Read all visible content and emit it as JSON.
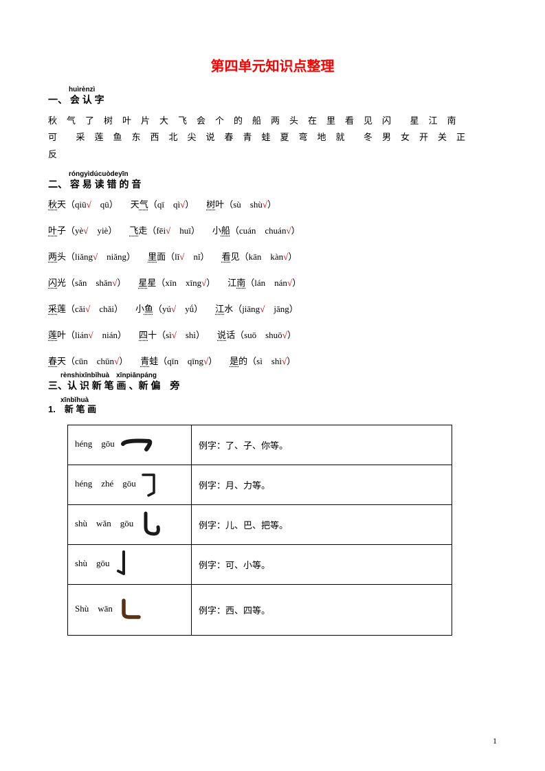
{
  "title_color": "#ff0000",
  "check_color": "#c00000",
  "title": "第四单元知识点整理",
  "section1": {
    "pinyin": "huìrènzì",
    "label": "一、 会 认 字",
    "chars_line1": "秋　气　了　树　叶　片　大　飞　会　个　的　船　两　头　在　里　看　见　闪　　星　江　南",
    "chars_line2": "可　　采　莲　鱼　东　西　北　尖　说　春　青　蛙　夏　弯　地　就　　冬　男　女　开　关　正",
    "chars_line3": "反"
  },
  "section2": {
    "pinyin": "róngyìdúcuòdeyīn",
    "label": "二、 容 易 读 错 的 音",
    "rows": [
      [
        {
          "word": "秋天",
          "dot": 0,
          "a": "qiū",
          "b": "qū",
          "correct": "a"
        },
        {
          "word": "天气",
          "dot": 1,
          "a": "qī",
          "b": "qì",
          "correct": "b"
        },
        {
          "word": "树叶",
          "dot": 0,
          "a": "sù",
          "b": "shù",
          "correct": "b"
        }
      ],
      [
        {
          "word": "叶子",
          "dot": 0,
          "a": "yè",
          "b": "yiè",
          "correct": "a"
        },
        {
          "word": "飞走",
          "dot": 0,
          "a": "fēi",
          "b": "huī",
          "correct": "a"
        },
        {
          "word": "小船",
          "dot": 1,
          "a": "cuán",
          "b": "chuán",
          "correct": "b"
        }
      ],
      [
        {
          "word": "两头",
          "dot": 0,
          "a": "liǎng",
          "b": "niǎng",
          "correct": "a"
        },
        {
          "word": "里面",
          "dot": 0,
          "a": "lǐ",
          "b": "nǐ",
          "correct": "a"
        },
        {
          "word": "看见",
          "dot": 0,
          "a": "kān",
          "b": "kàn",
          "correct": "b"
        }
      ],
      [
        {
          "word": "闪光",
          "dot": 0,
          "a": "sǎn",
          "b": "shǎn",
          "correct": "b"
        },
        {
          "word": "星星",
          "dot": 0,
          "a": "xīn",
          "b": "xīng",
          "correct": "b"
        },
        {
          "word": "江南",
          "dot": 1,
          "a": "lán",
          "b": "nán",
          "correct": "b"
        }
      ],
      [
        {
          "word": "采莲",
          "dot": 0,
          "a": "cǎi",
          "b": "chǎi",
          "correct": "a"
        },
        {
          "word": "小鱼",
          "dot": 1,
          "a": "yú",
          "b": "yǘ",
          "correct": "a"
        },
        {
          "word": "江水",
          "dot": 0,
          "a": "jiāng",
          "b": "jāng",
          "correct": "a"
        }
      ],
      [
        {
          "word": "莲叶",
          "dot": 0,
          "a": "lián",
          "b": "nián",
          "correct": "a"
        },
        {
          "word": "四十",
          "dot": 0,
          "a": "sì",
          "b": "shì",
          "correct": "a"
        },
        {
          "word": "说话",
          "dot": 0,
          "a": "suō",
          "b": "shuō",
          "correct": "b"
        }
      ],
      [
        {
          "word": "春天",
          "dot": 0,
          "a": "cūn",
          "b": "chūn",
          "correct": "b"
        },
        {
          "word": "青蛙",
          "dot": 0,
          "a": "qīn",
          "b": "qīng",
          "correct": "b"
        },
        {
          "word": "是的",
          "dot": 0,
          "a": "sì",
          "b": "shì",
          "correct": "b"
        }
      ]
    ]
  },
  "section3": {
    "pinyin": "rènshixīnbǐhuà　xīnpiānpáng",
    "label": "三、认 识 新 笔 画 、新 偏　旁"
  },
  "sub1": {
    "pinyin": "xīnbǐhuà",
    "label": "1.　新 笔 画"
  },
  "stroke_colors": {
    "black": "#1a1a1a",
    "brown": "#5a3015"
  },
  "strokes": [
    {
      "pinyin": "héng　gōu",
      "example": "例字：了、子、你等。",
      "type": "henggou"
    },
    {
      "pinyin": "héng　zhé　gōu",
      "example": "例字：月、力等。",
      "type": "hengzhegou"
    },
    {
      "pinyin": "shù　wǎn　gōu",
      "example": "例字：儿、巴、把等。",
      "type": "shuwangou"
    },
    {
      "pinyin": "shù　gōu",
      "example": "例字：可、小等。",
      "type": "shugou"
    },
    {
      "pinyin": "Shù　wān",
      "example": "例字：西、四等。",
      "type": "shuwan",
      "last": true
    }
  ],
  "page_number": "1"
}
